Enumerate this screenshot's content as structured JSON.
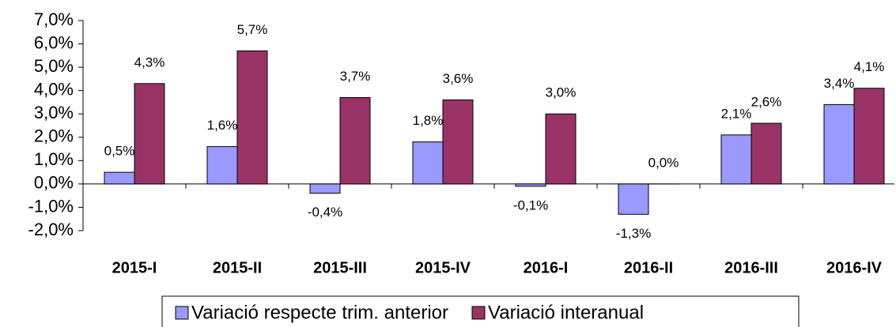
{
  "chart_data": {
    "type": "bar",
    "categories": [
      "2015-I",
      "2015-II",
      "2015-III",
      "2015-IV",
      "2016-I",
      "2016-II",
      "2016-III",
      "2016-IV"
    ],
    "series": [
      {
        "name": "Variació respecte trim. anterior",
        "color": "#9999ff",
        "values": [
          0.5,
          1.6,
          -0.4,
          1.8,
          -0.1,
          -1.3,
          2.1,
          3.4
        ],
        "value_labels": [
          "0,5%",
          "1,6%",
          "-0,4%",
          "1,8%",
          "-0,1%",
          "-1,3%",
          "2,1%",
          "3,4%"
        ]
      },
      {
        "name": "Variació interanual",
        "color": "#993366",
        "values": [
          4.3,
          5.7,
          3.7,
          3.6,
          3.0,
          0.0,
          2.6,
          4.1
        ],
        "value_labels": [
          "4,3%",
          "5,7%",
          "3,7%",
          "3,6%",
          "3,0%",
          "0,0%",
          "2,6%",
          "4,1%"
        ]
      }
    ],
    "ylim": [
      -2,
      7
    ],
    "yticks": [
      {
        "value": -2,
        "label": "-2,0%"
      },
      {
        "value": -1,
        "label": "-1,0%"
      },
      {
        "value": 0,
        "label": "0,0%"
      },
      {
        "value": 1,
        "label": "1,0%"
      },
      {
        "value": 2,
        "label": "2,0%"
      },
      {
        "value": 3,
        "label": "3,0%"
      },
      {
        "value": 4,
        "label": "4,0%"
      },
      {
        "value": 5,
        "label": "5,0%"
      },
      {
        "value": 6,
        "label": "6,0%"
      },
      {
        "value": 7,
        "label": "7,0%"
      }
    ],
    "grid": false,
    "legend": "bottom"
  }
}
